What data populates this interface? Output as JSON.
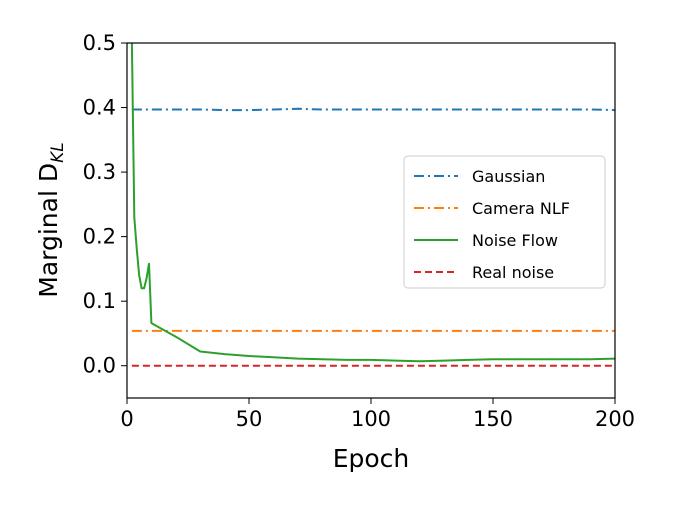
{
  "chart_data": {
    "type": "line",
    "title": "",
    "xlabel": "Epoch",
    "ylabel_main": "Marginal D",
    "ylabel_subscript": "KL",
    "xlim": [
      0,
      200
    ],
    "ylim": [
      -0.05,
      0.5
    ],
    "xticks": [
      0,
      50,
      100,
      150,
      200
    ],
    "yticks": [
      0.0,
      0.1,
      0.2,
      0.3,
      0.4,
      0.5
    ],
    "xtick_labels": [
      "0",
      "50",
      "100",
      "150",
      "200"
    ],
    "ytick_labels": [
      "0.0",
      "0.1",
      "0.2",
      "0.3",
      "0.4",
      "0.5"
    ],
    "grid": false,
    "legend_position": "center-right",
    "series": [
      {
        "name": "Gaussian",
        "color": "#1f77b4",
        "dash": "dashdot",
        "x": [
          2,
          10,
          20,
          30,
          40,
          50,
          60,
          70,
          80,
          90,
          100,
          110,
          120,
          130,
          140,
          150,
          160,
          170,
          180,
          190,
          200
        ],
        "y": [
          0.397,
          0.397,
          0.397,
          0.397,
          0.396,
          0.396,
          0.397,
          0.398,
          0.397,
          0.397,
          0.397,
          0.397,
          0.397,
          0.397,
          0.397,
          0.397,
          0.397,
          0.397,
          0.397,
          0.397,
          0.396
        ]
      },
      {
        "name": "Camera NLF",
        "color": "#ff7f0e",
        "dash": "dashdot",
        "x": [
          2,
          200
        ],
        "y": [
          0.054,
          0.054
        ]
      },
      {
        "name": "Noise Flow",
        "color": "#2ca02c",
        "dash": "solid",
        "x": [
          2,
          3,
          4,
          5,
          6,
          7,
          8,
          9,
          10,
          20,
          30,
          40,
          50,
          60,
          70,
          80,
          90,
          100,
          110,
          120,
          130,
          140,
          150,
          160,
          170,
          180,
          190,
          200
        ],
        "y": [
          0.5,
          0.23,
          0.18,
          0.14,
          0.12,
          0.12,
          0.135,
          0.158,
          0.066,
          0.045,
          0.022,
          0.018,
          0.015,
          0.013,
          0.011,
          0.01,
          0.009,
          0.009,
          0.008,
          0.007,
          0.008,
          0.009,
          0.01,
          0.01,
          0.01,
          0.01,
          0.01,
          0.011
        ]
      },
      {
        "name": "Real noise",
        "color": "#d62728",
        "dash": "dashed",
        "x": [
          2,
          200
        ],
        "y": [
          0.0,
          0.0
        ]
      }
    ]
  }
}
